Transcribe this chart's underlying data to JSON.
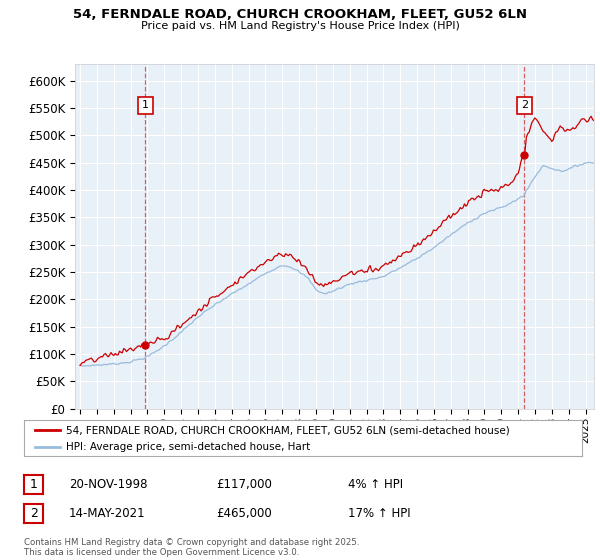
{
  "title_line1": "54, FERNDALE ROAD, CHURCH CROOKHAM, FLEET, GU52 6LN",
  "title_line2": "Price paid vs. HM Land Registry's House Price Index (HPI)",
  "legend_line1": "54, FERNDALE ROAD, CHURCH CROOKHAM, FLEET, GU52 6LN (semi-detached house)",
  "legend_line2": "HPI: Average price, semi-detached house, Hart",
  "annotation1_date": "20-NOV-1998",
  "annotation1_price": "£117,000",
  "annotation1_hpi": "4% ↑ HPI",
  "annotation2_date": "14-MAY-2021",
  "annotation2_price": "£465,000",
  "annotation2_hpi": "17% ↑ HPI",
  "footer": "Contains HM Land Registry data © Crown copyright and database right 2025.\nThis data is licensed under the Open Government Licence v3.0.",
  "red_color": "#cc0000",
  "blue_color": "#99bbdd",
  "plot_bg": "#e8f0f8",
  "grid_color": "#ffffff",
  "sale1_year": 1998.88,
  "sale1_price": 117000,
  "sale2_year": 2021.37,
  "sale2_price": 465000,
  "ylim_max": 620000,
  "yticks": [
    0,
    50000,
    100000,
    150000,
    200000,
    250000,
    300000,
    350000,
    400000,
    450000,
    500000,
    550000,
    600000
  ]
}
